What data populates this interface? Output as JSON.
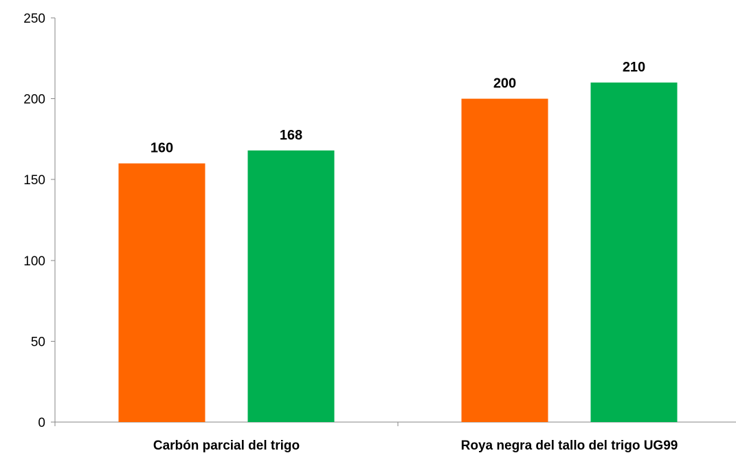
{
  "chart_data": {
    "type": "bar",
    "title": "",
    "xlabel": "",
    "ylabel": "",
    "categories": [
      "Carbón parcial del trigo",
      "Roya negra del tallo del trigo UG99"
    ],
    "series": [
      {
        "color": "#ff6600",
        "values": [
          160,
          200
        ]
      },
      {
        "color": "#00b050",
        "values": [
          168,
          210
        ]
      }
    ],
    "ylim": [
      0,
      250
    ],
    "yticks": [
      0,
      50,
      100,
      150,
      200,
      250
    ],
    "grid": false,
    "legend": "none"
  }
}
